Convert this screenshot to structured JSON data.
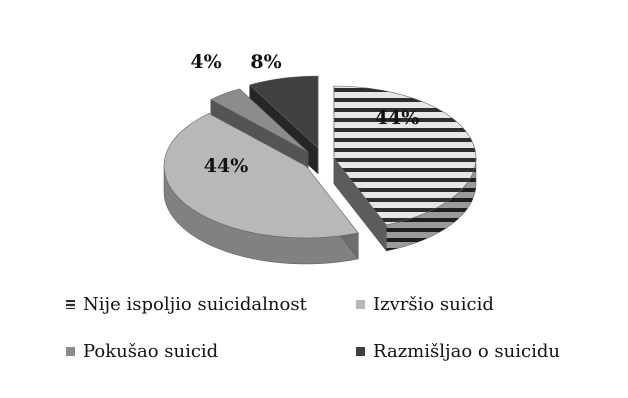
{
  "chart_data": {
    "type": "pie",
    "title": "",
    "three_d": true,
    "exploded": true,
    "legend_position": "bottom",
    "categories": [
      "Nije ispoljio suicidalnost",
      "Izvršio suicid",
      "Pokušao suicid",
      "Razmišljao o suicidu"
    ],
    "values": [
      44,
      44,
      4,
      8
    ],
    "labels": [
      "44%",
      "44%",
      "4%",
      "8%"
    ],
    "colors": [
      "#d0d0d0",
      "#b8b8b8",
      "#8c8c8c",
      "#404040"
    ]
  }
}
